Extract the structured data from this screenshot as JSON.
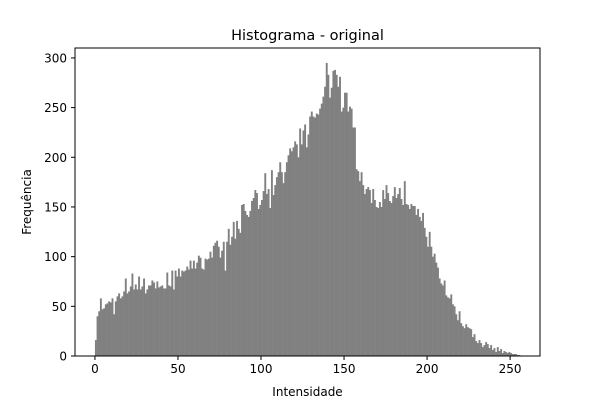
{
  "chart_data": {
    "type": "bar",
    "title": "Histograma - original",
    "xlabel": "Intensidade",
    "ylabel": "Frequência",
    "xlim": [
      -12,
      268
    ],
    "ylim": [
      0,
      310
    ],
    "xticks": [
      0,
      50,
      100,
      150,
      200,
      250
    ],
    "yticks": [
      0,
      50,
      100,
      150,
      200,
      250,
      300
    ],
    "grid": false,
    "bar_color": "#808080",
    "series": [
      {
        "values": [
          16,
          40,
          45,
          58,
          47,
          48,
          52,
          53,
          55,
          54,
          58,
          42,
          55,
          60,
          63,
          58,
          60,
          65,
          78,
          63,
          65,
          70,
          83,
          67,
          72,
          67,
          80,
          67,
          70,
          78,
          63,
          67,
          71,
          71,
          76,
          74,
          68,
          75,
          69,
          70,
          71,
          68,
          68,
          84,
          71,
          70,
          86,
          67,
          86,
          80,
          88,
          80,
          86,
          85,
          86,
          90,
          87,
          96,
          88,
          96,
          88,
          94,
          101,
          99,
          88,
          87,
          98,
          97,
          98,
          105,
          99,
          111,
          114,
          116,
          110,
          99,
          106,
          115,
          86,
          115,
          128,
          112,
          120,
          135,
          118,
          136,
          128,
          124,
          152,
          153,
          146,
          142,
          140,
          146,
          156,
          159,
          167,
          164,
          148,
          152,
          157,
          166,
          184,
          163,
          168,
          149,
          187,
          162,
          172,
          180,
          185,
          195,
          185,
          174,
          185,
          195,
          202,
          209,
          206,
          210,
          216,
          213,
          200,
          229,
          213,
          227,
          233,
          210,
          223,
          241,
          246,
          241,
          240,
          244,
          243,
          249,
          254,
          261,
          271,
          295,
          283,
          260,
          270,
          287,
          288,
          283,
          271,
          281,
          246,
          250,
          265,
          265,
          246,
          251,
          249,
          230,
          230,
          188,
          186,
          176,
          185,
          172,
          163,
          168,
          170,
          167,
          154,
          168,
          157,
          150,
          149,
          155,
          150,
          167,
          158,
          172,
          164,
          156,
          154,
          161,
          170,
          159,
          163,
          169,
          158,
          152,
          176,
          153,
          152,
          148,
          153,
          151,
          151,
          142,
          148,
          140,
          136,
          144,
          129,
          120,
          110,
          125,
          110,
          100,
          103,
          94,
          89,
          78,
          73,
          71,
          76,
          61,
          59,
          58,
          62,
          52,
          50,
          42,
          36,
          45,
          33,
          30,
          28,
          32,
          29,
          28,
          27,
          19,
          22,
          15,
          13,
          16,
          13,
          9,
          11,
          14,
          12,
          8,
          11,
          6,
          8,
          4,
          9,
          5,
          7,
          3,
          5,
          4,
          3,
          4,
          3,
          2,
          2,
          2,
          1,
          1
        ]
      }
    ]
  }
}
